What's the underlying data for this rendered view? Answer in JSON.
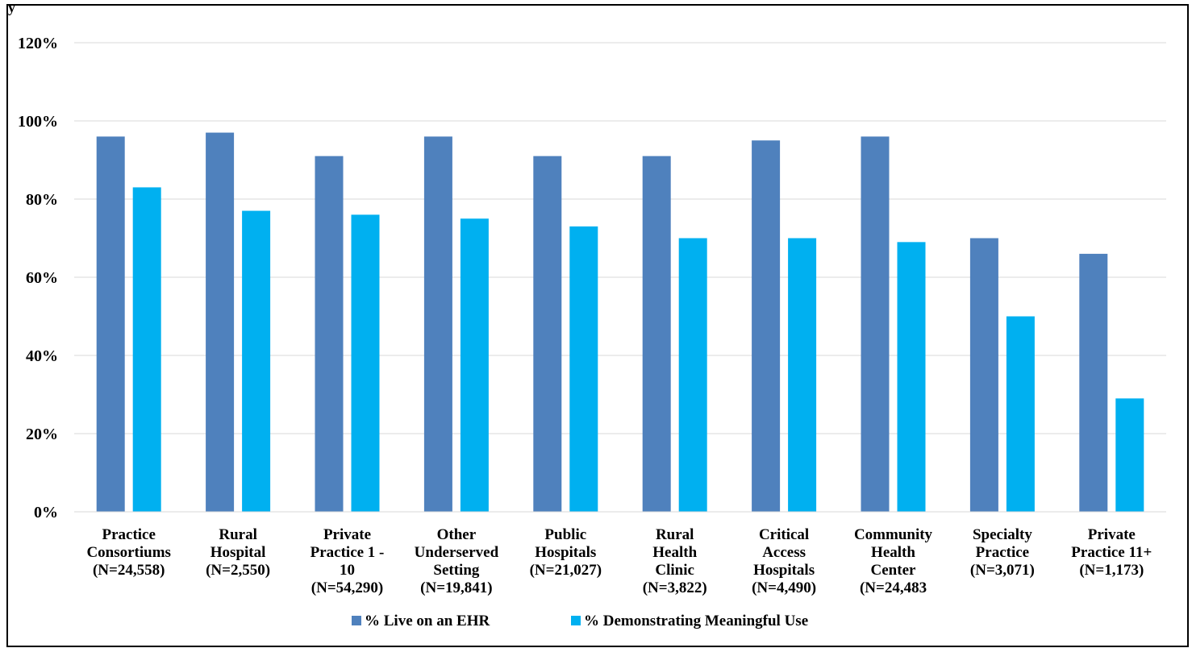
{
  "header": {
    "partial_text": "y"
  },
  "chart_data": {
    "type": "bar",
    "categories": [
      [
        "Practice",
        "Consortiums",
        "(N=24,558)"
      ],
      [
        "Rural",
        "Hospital",
        "(N=2,550)"
      ],
      [
        "Private",
        "Practice 1 -",
        "10",
        "(N=54,290)"
      ],
      [
        "Other",
        "Underserved",
        "Setting",
        "(N=19,841)"
      ],
      [
        "Public",
        "Hospitals",
        "(N=21,027)"
      ],
      [
        "Rural",
        "Health",
        "Clinic",
        "(N=3,822)"
      ],
      [
        "Critical",
        "Access",
        "Hospitals",
        "(N=4,490)"
      ],
      [
        "Community",
        "Health",
        "Center",
        "(N=24,483"
      ],
      [
        "Specialty",
        "Practice",
        "(N=3,071)"
      ],
      [
        "Private",
        "Practice 11+",
        "(N=1,173)"
      ]
    ],
    "series": [
      {
        "name": "% Live on an EHR",
        "color": "#4f81bd",
        "values": [
          96,
          97,
          91,
          96,
          91,
          91,
          95,
          96,
          70,
          66
        ]
      },
      {
        "name": "% Demonstrating Meaningful Use",
        "color": "#00b0f0",
        "values": [
          83,
          77,
          76,
          75,
          73,
          70,
          70,
          69,
          50,
          29
        ]
      }
    ],
    "ylim": [
      0,
      120
    ],
    "yticks": [
      "0%",
      "20%",
      "40%",
      "60%",
      "80%",
      "100%",
      "120%"
    ],
    "grid": true,
    "legend_position": "bottom"
  }
}
